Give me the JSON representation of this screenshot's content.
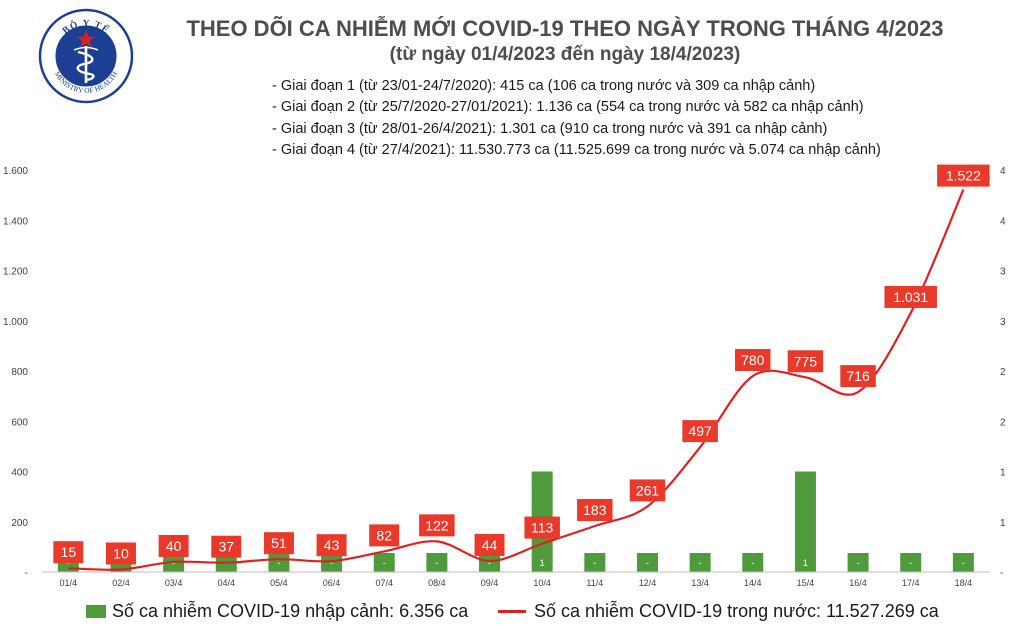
{
  "header": {
    "title_line1": "THEO DÕI CA NHIỄM MỚI COVID-19 THEO NGÀY TRONG THÁNG 4/2023",
    "title_line2": "(từ ngày 01/4/2023 đến ngày 18/4/2023)"
  },
  "logo": {
    "top_text": "BỘ Y TẾ",
    "bottom_text": "MINISTRY OF HEALTH"
  },
  "notes": [
    "- Giai đoạn 1 (từ 23/01-24/7/2020): 415 ca (106 ca trong nước và 309 ca nhập cảnh)",
    "- Giai đoạn 2 (từ 25/7/2020-27/01/2021): 1.136 ca (554 ca trong nước và 582 ca nhập cảnh)",
    "- Giai đoạn 3 (từ 28/01-26/4/2021): 1.301 ca (910 ca trong nước và 391 ca nhập cảnh)",
    "- Giai đoạn 4 (từ 27/4/2021): 11.530.773 ca (11.525.699 ca trong nước và 5.074 ca nhập cảnh)"
  ],
  "legend": {
    "bar_label": "Số ca nhiễm COVID-19 nhập cảnh: 6.356 ca",
    "line_label": "Số ca nhiễm COVID-19 trong nước: 11.527.269 ca"
  },
  "colors": {
    "bar": "#4e9a3c",
    "line": "#e02020",
    "label_box": "#e8392a",
    "title": "#4d4d4d"
  },
  "chart_data": {
    "type": "bar+line",
    "categories": [
      "01/4",
      "02/4",
      "03/4",
      "04/4",
      "05/4",
      "06/4",
      "07/4",
      "08/4",
      "09/4",
      "10/4",
      "11/4",
      "12/4",
      "13/4",
      "14/4",
      "15/4",
      "16/4",
      "17/4",
      "18/4"
    ],
    "series": [
      {
        "name": "Số ca nhiễm COVID-19 trong nước",
        "type": "line",
        "axis": "left",
        "values": [
          15,
          10,
          40,
          37,
          51,
          43,
          82,
          122,
          44,
          113,
          183,
          261,
          497,
          780,
          775,
          716,
          1031,
          1522
        ],
        "labels": [
          "15",
          "10",
          "40",
          "37",
          "51",
          "43",
          "82",
          "122",
          "44",
          "113",
          "183",
          "261",
          "497",
          "780",
          "775",
          "716",
          "1.031",
          "1.522"
        ]
      },
      {
        "name": "Số ca nhiễm COVID-19 nhập cảnh",
        "type": "bar",
        "axis": "right",
        "values": [
          0,
          0,
          0,
          0,
          0,
          0,
          0,
          0,
          0,
          1,
          0,
          0,
          0,
          0,
          1,
          0,
          0,
          0
        ],
        "labels": [
          "-",
          "-",
          "-",
          "-",
          "-",
          "-",
          "-",
          "-",
          "-",
          "1",
          "-",
          "-",
          "-",
          "-",
          "1",
          "-",
          "-",
          "-"
        ]
      }
    ],
    "left_axis": {
      "ylim": [
        0,
        1600
      ],
      "ticks": [
        "-",
        "200",
        "400",
        "600",
        "800",
        "1.000",
        "1.200",
        "1.400",
        "1.600"
      ]
    },
    "right_axis": {
      "ylim": [
        0,
        4
      ],
      "ticks": [
        "-",
        "1",
        "1",
        "2",
        "2",
        "3",
        "3",
        "4",
        "4"
      ]
    },
    "grid": false,
    "legend_position": "bottom"
  }
}
